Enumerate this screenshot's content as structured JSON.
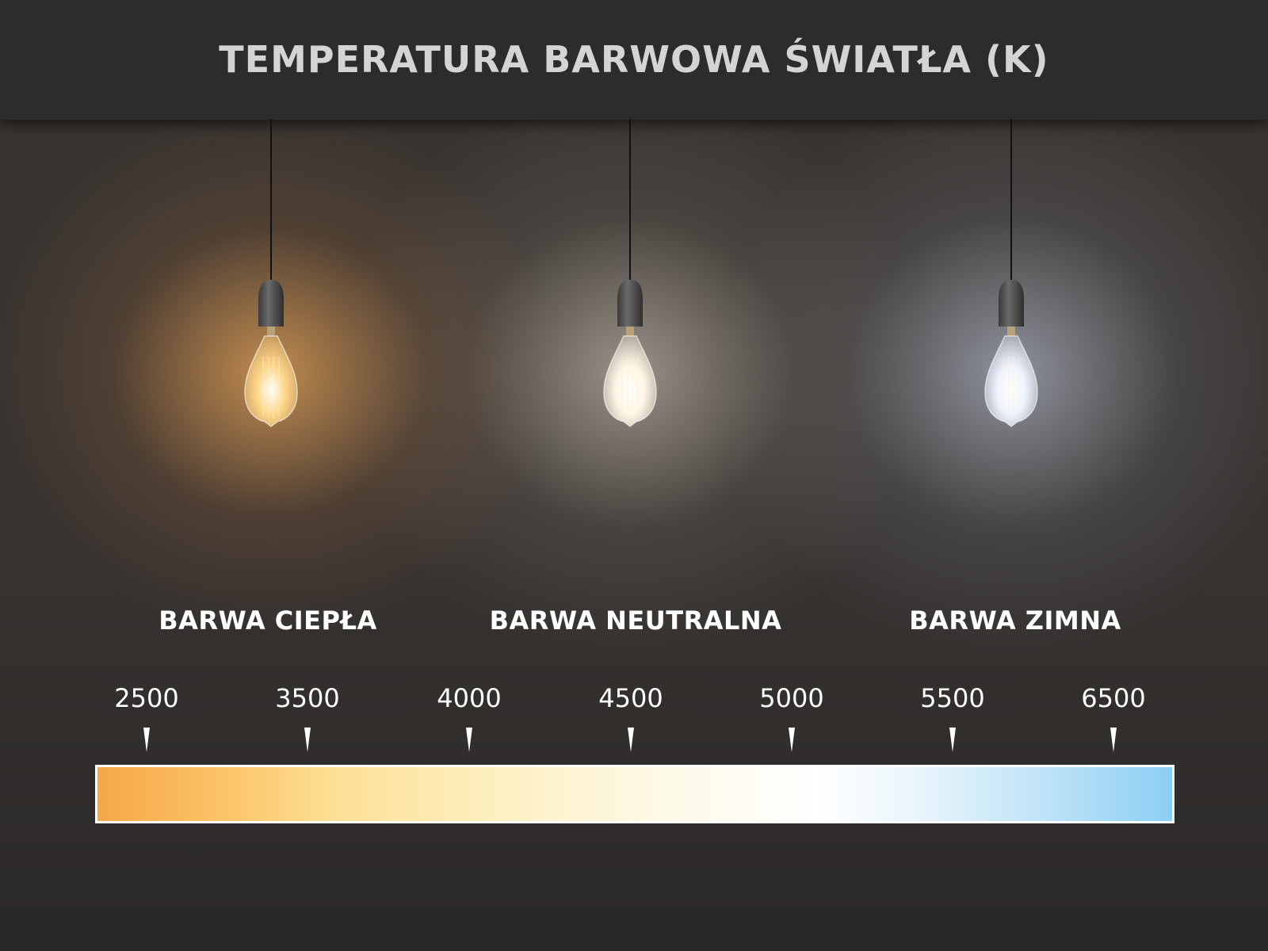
{
  "title": "TEMPERATURA BARWOWA ŚWIATŁA (K)",
  "categories": [
    {
      "label": "BARWA CIEPŁA",
      "glow": "#ffd68a"
    },
    {
      "label": "BARWA NEUTRALNA",
      "glow": "#fff6e6"
    },
    {
      "label": "BARWA ZIMNA",
      "glow": "#eef3ff"
    }
  ],
  "scale": {
    "ticks": [
      "2500",
      "3500",
      "4000",
      "4500",
      "5000",
      "5500",
      "6500"
    ],
    "colors": [
      "#f5a747",
      "#fde095",
      "#ffffff",
      "#8ccff4"
    ]
  }
}
